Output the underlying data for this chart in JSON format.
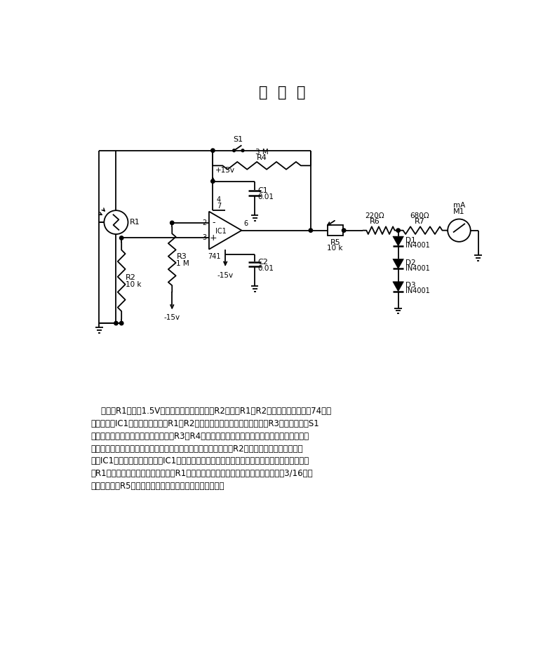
{
  "title": "照  度  表",
  "title_fontsize": 15,
  "bg_color": "#ffffff",
  "line_color": "#000000",
  "text_color": "#000000",
  "fig_width": 7.84,
  "fig_height": 9.23,
  "description_lines": [
    "    光电池R1一端接1.5V电源，而另一端通过电阻R2接地，R1与R2形成一个分压网络。74）运",
    "算放大器（IC1）同相输入端接在R1与R2连接点处，而反向输入端通过电阻R3接地。当按下S1",
    "开关时，就形成了另外一个分压网络（R3和R4），产生一个加到运算放大器反相输入端的电压。",
    "如果有光线照射光电池，它的电阻将降低，并产生较大的电压加到R2上，同时一个较高的电压出",
    "现在IC1的同相输入端。这使得IC1输出正比于两个输入的电压。电路给出一个取决于照射在光电",
    "池R1的光照强度的表头读数。因此，R1应装在一个有盖子的瓶子里，使光能通过一个3/16英寸",
    "的孔。电位器R5用来调节电路，以适应你正在使用的底片。"
  ]
}
